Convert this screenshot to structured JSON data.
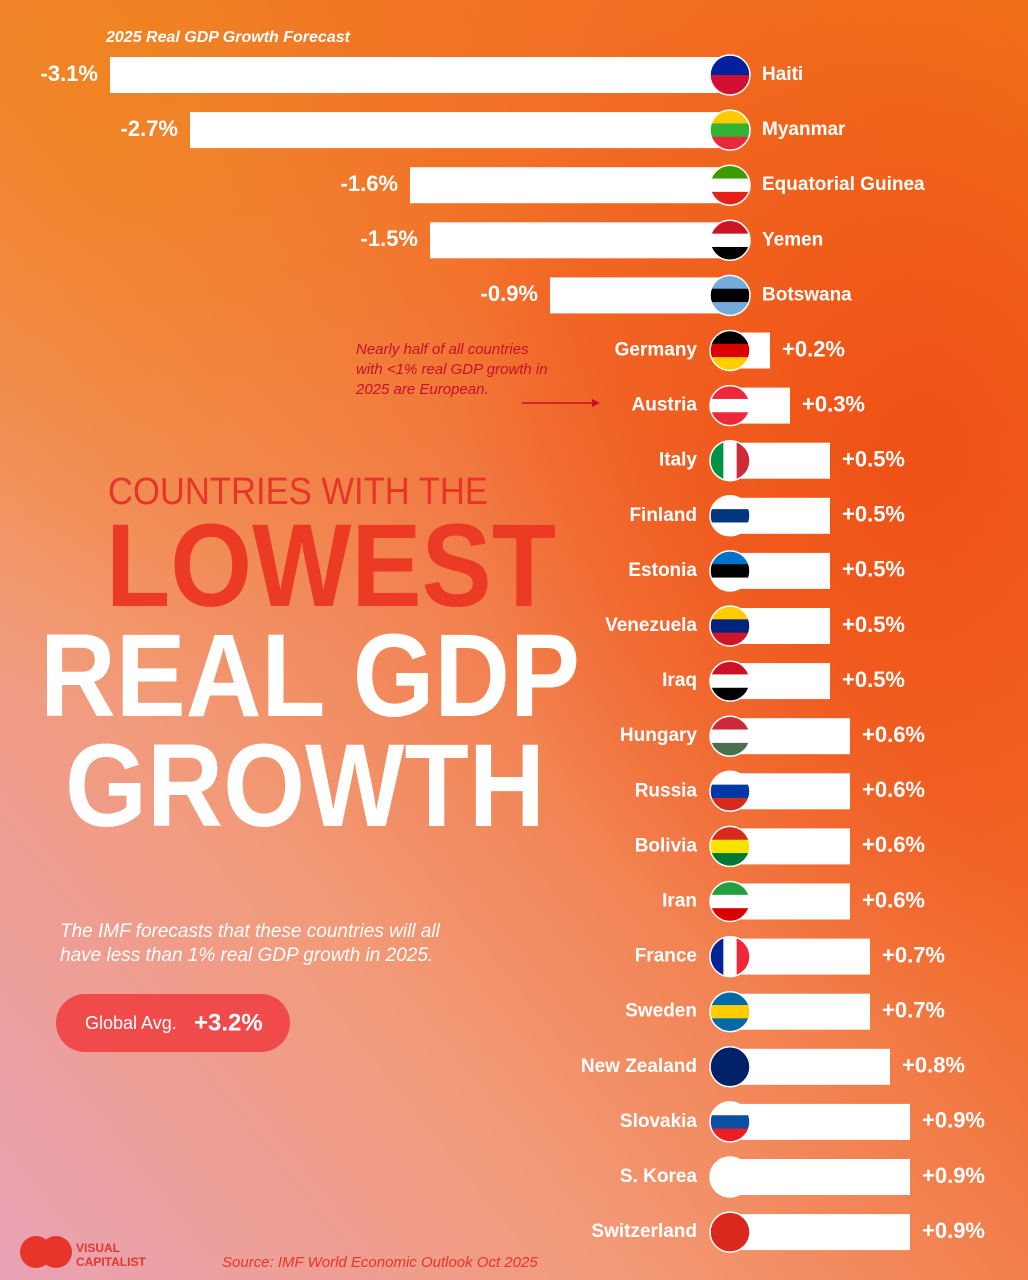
{
  "chart_data": {
    "type": "bar",
    "orientation": "horizontal",
    "subtitle": "2025 Real GDP Growth Forecast",
    "headline": [
      "COUNTRIES WITH THE",
      "LOWEST",
      "REAL GDP",
      "GROWTH"
    ],
    "description": "The IMF forecasts that these countries will all have less than 1% real GDP growth in 2025.",
    "annotation": "Nearly half of all countries with <1% real GDP growth in 2025 are European.",
    "global_avg": {
      "label": "Global Avg.",
      "value": 3.2,
      "value_label": "+3.2%"
    },
    "categories": [
      "Haiti",
      "Myanmar",
      "Equatorial Guinea",
      "Yemen",
      "Botswana",
      "Germany",
      "Austria",
      "Italy",
      "Finland",
      "Estonia",
      "Venezuela",
      "Iraq",
      "Hungary",
      "Russia",
      "Bolivia",
      "Iran",
      "France",
      "Sweden",
      "New Zealand",
      "Slovakia",
      "S. Korea",
      "Switzerland"
    ],
    "values": [
      -3.1,
      -2.7,
      -1.6,
      -1.5,
      -0.9,
      0.2,
      0.3,
      0.5,
      0.5,
      0.5,
      0.5,
      0.5,
      0.6,
      0.6,
      0.6,
      0.6,
      0.7,
      0.7,
      0.8,
      0.9,
      0.9,
      0.9
    ],
    "value_labels": [
      "-3.1%",
      "-2.7%",
      "-1.6%",
      "-1.5%",
      "-0.9%",
      "+0.2%",
      "+0.3%",
      "+0.5%",
      "+0.5%",
      "+0.5%",
      "+0.5%",
      "+0.5%",
      "+0.6%",
      "+0.6%",
      "+0.6%",
      "+0.6%",
      "+0.7%",
      "+0.7%",
      "+0.8%",
      "+0.9%",
      "+0.9%",
      "+0.9%"
    ],
    "color": "#ffffff",
    "source": "Source: IMF World Economic Outlook Oct 2025",
    "brand": [
      "VISUAL",
      "CAPITALIST"
    ]
  }
}
